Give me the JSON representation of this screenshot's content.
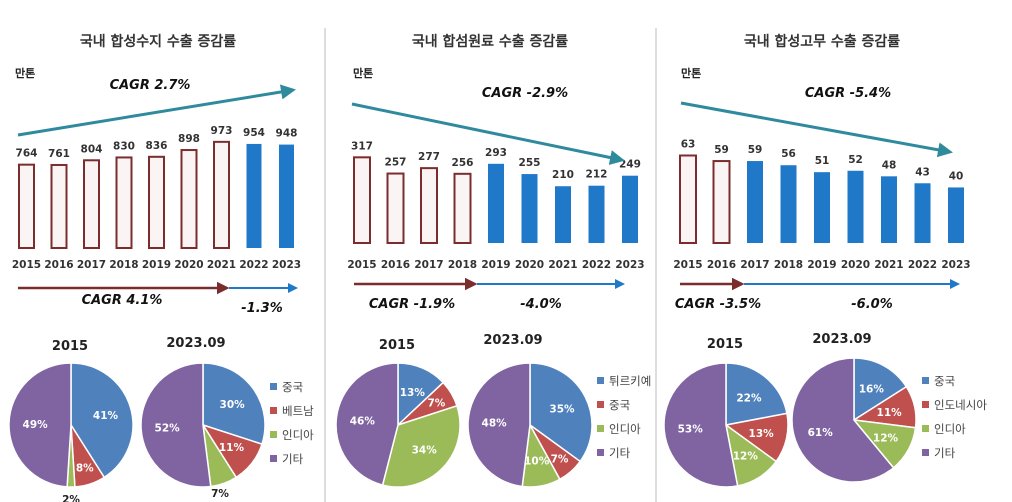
{
  "colors": {
    "outline_bar": "#7B2C2C",
    "outline_fill": "#FBF4F4",
    "solid_bar": "#1F78C8",
    "top_arrow": "#2E8A9C",
    "left_arrow": "#7B2C2C",
    "right_arrow": "#1F78C8",
    "pie_blue": "#4F81BD",
    "pie_red": "#C0504D",
    "pie_green": "#9BBB59",
    "pie_purple": "#8064A2"
  },
  "chart_data": [
    {
      "type": "bar",
      "title": "국내 합성수지 수출 증감률",
      "unit": "만톤",
      "categories": [
        "2015",
        "2016",
        "2017",
        "2018",
        "2019",
        "2020",
        "2021",
        "2022",
        "2023"
      ],
      "values": [
        764,
        761,
        804,
        830,
        836,
        898,
        973,
        954,
        948
      ],
      "outline_count": 7,
      "ylim": [
        0,
        1100
      ],
      "cagr_top": "CAGR 2.7%",
      "top_trend": "up",
      "cagr_left": "CAGR 4.1%",
      "cagr_right": "-1.3%"
    },
    {
      "type": "bar",
      "title": "국내 합섬원료 수출 증감률",
      "unit": "만톤",
      "categories": [
        "2015",
        "2016",
        "2017",
        "2018",
        "2019",
        "2020",
        "2021",
        "2022",
        "2023"
      ],
      "values": [
        317,
        257,
        277,
        256,
        293,
        255,
        210,
        212,
        249
      ],
      "outline_count": 4,
      "ylim": [
        0,
        370
      ],
      "cagr_top": "CAGR -2.9%",
      "top_trend": "down",
      "cagr_left": "CAGR -1.9%",
      "cagr_right": "-4.0%"
    },
    {
      "type": "bar",
      "title": "국내 합성고무 수출 증감률",
      "unit": "만톤",
      "categories": [
        "2015",
        "2016",
        "2017",
        "2018",
        "2019",
        "2020",
        "2021",
        "2022",
        "2023"
      ],
      "values": [
        63,
        59,
        59,
        56,
        51,
        52,
        48,
        43,
        40
      ],
      "outline_count": 2,
      "ylim": [
        0,
        72
      ],
      "cagr_top": "CAGR -5.4%",
      "top_trend": "down",
      "cagr_left": "CAGR -3.5%",
      "cagr_right": "-6.0%"
    },
    {
      "type": "pie",
      "group": "합성수지",
      "pies": [
        {
          "title": "2015",
          "labels": [
            "중국",
            "베트남",
            "인디아",
            "기타"
          ],
          "values": [
            41,
            8,
            2,
            49
          ]
        },
        {
          "title": "2023.09",
          "labels": [
            "중국",
            "베트남",
            "인디아",
            "기타"
          ],
          "values": [
            30,
            11,
            7,
            52
          ]
        }
      ],
      "legend": [
        "중국",
        "베트남",
        "인디아",
        "기타"
      ]
    },
    {
      "type": "pie",
      "group": "합섬원료",
      "pies": [
        {
          "title": "2015",
          "labels": [
            "튀르키예",
            "중국",
            "인디아",
            "기타"
          ],
          "values": [
            13,
            7,
            34,
            46
          ]
        },
        {
          "title": "2023.09",
          "labels": [
            "튀르키예",
            "중국",
            "인디아",
            "기타"
          ],
          "values": [
            35,
            7,
            10,
            48
          ]
        }
      ],
      "legend": [
        "튀르키예",
        "중국",
        "인디아",
        "기타"
      ]
    },
    {
      "type": "pie",
      "group": "합성고무",
      "pies": [
        {
          "title": "2015",
          "labels": [
            "중국",
            "인도네시아",
            "인디아",
            "기타"
          ],
          "values": [
            22,
            13,
            12,
            53
          ]
        },
        {
          "title": "2023.09",
          "labels": [
            "중국",
            "인도네시아",
            "인디아",
            "기타"
          ],
          "values": [
            16,
            11,
            12,
            61
          ]
        }
      ],
      "legend": [
        "중국",
        "인도네시아",
        "인디아",
        "기타"
      ]
    }
  ]
}
